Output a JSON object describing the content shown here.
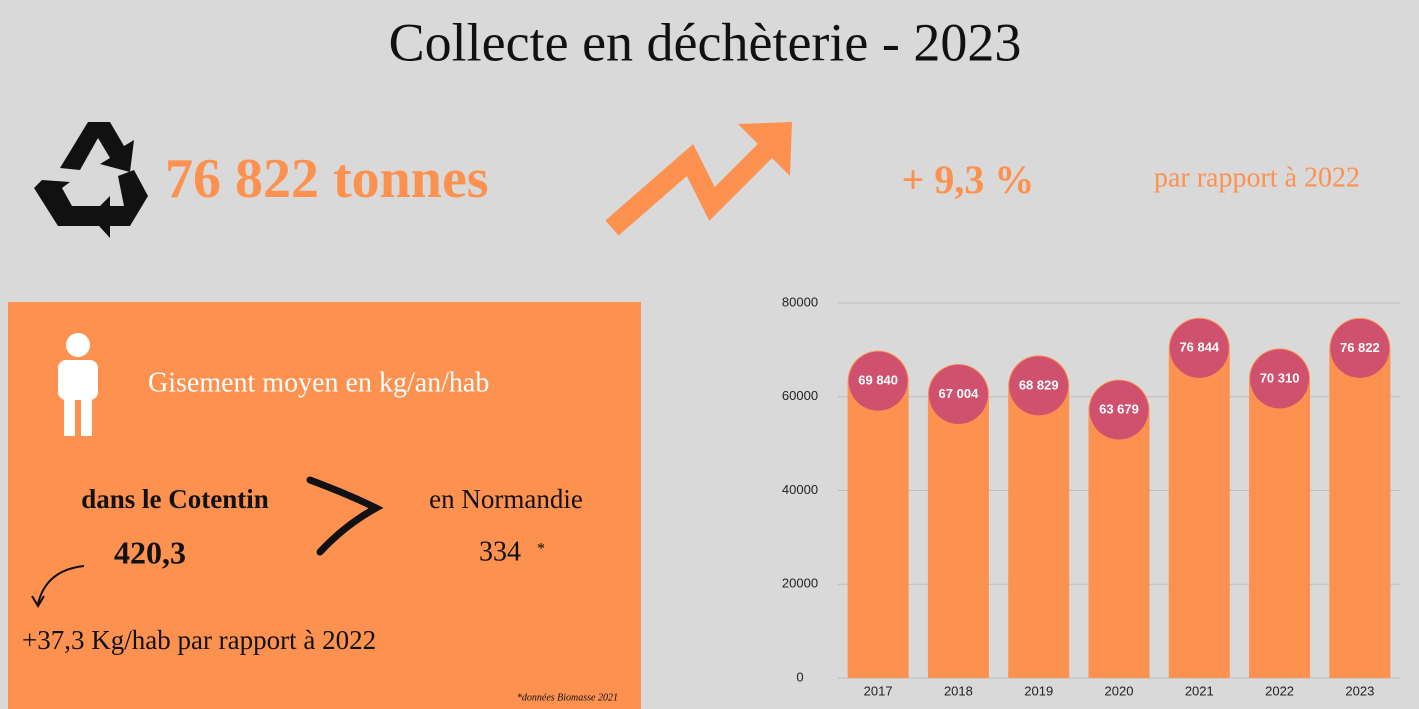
{
  "title": "Collecte en déchèterie - 2023",
  "total": "76 822 tonnes",
  "change": "+ 9,3 %",
  "change_note": "par rapport à 2022",
  "panel": {
    "heading": "Gisement moyen en kg/an/hab",
    "local_label": "dans le Cotentin",
    "local_value": "420,3",
    "region_label": "en Normandie",
    "region_value": "334",
    "region_mark": "*",
    "evolution": "+37,3 Kg/hab par rapport à 2022",
    "source": "*données Biomasse 2021"
  },
  "chart_data": {
    "type": "bar",
    "categories": [
      "2017",
      "2018",
      "2019",
      "2020",
      "2021",
      "2022",
      "2023"
    ],
    "values": [
      69840,
      67004,
      68829,
      63679,
      76844,
      70310,
      76822
    ],
    "value_labels": [
      "69 840",
      "67 004",
      "68 829",
      "63 679",
      "76 844",
      "70 310",
      "76 822"
    ],
    "color": "#fd9150",
    "label_color": "#d0516e",
    "ylim": [
      0,
      80000
    ],
    "yticks": [
      0,
      20000,
      40000,
      60000,
      80000
    ],
    "grid": true
  }
}
